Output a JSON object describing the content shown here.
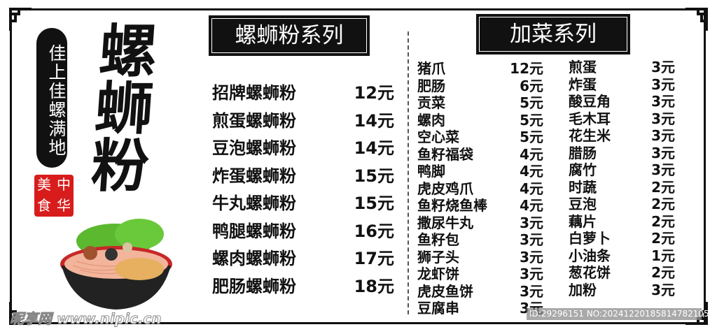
{
  "branding": {
    "slogan": "佳上佳螺满地",
    "big_title": "螺蛳粉",
    "seal_chars": [
      "美",
      "中",
      "食",
      "华"
    ],
    "seal_color": "#d81c1c"
  },
  "main_menu": {
    "title": "螺蛳粉系列",
    "items": [
      {
        "name": "招牌螺蛳粉",
        "price": "12元"
      },
      {
        "name": "煎蛋螺蛳粉",
        "price": "14元"
      },
      {
        "name": "豆泡螺蛳粉",
        "price": "14元"
      },
      {
        "name": "炸蛋螺蛳粉",
        "price": "15元"
      },
      {
        "name": "牛丸螺蛳粉",
        "price": "15元"
      },
      {
        "name": "鸭腿螺蛳粉",
        "price": "16元"
      },
      {
        "name": "螺肉螺蛳粉",
        "price": "17元"
      },
      {
        "name": "肥肠螺蛳粉",
        "price": "18元"
      }
    ]
  },
  "addons": {
    "title": "加菜系列",
    "column1": [
      {
        "name": "猪爪",
        "price": "12元"
      },
      {
        "name": "肥肠",
        "price": "6元"
      },
      {
        "name": "贡菜",
        "price": "5元"
      },
      {
        "name": "螺肉",
        "price": "5元"
      },
      {
        "name": "空心菜",
        "price": "5元"
      },
      {
        "name": "鱼籽福袋",
        "price": "4元"
      },
      {
        "name": "鸭脚",
        "price": "4元"
      },
      {
        "name": "虎皮鸡爪",
        "price": "4元"
      },
      {
        "name": "鱼籽烧鱼棒",
        "price": "4元"
      },
      {
        "name": "撒尿牛丸",
        "price": "3元"
      },
      {
        "name": "鱼籽包",
        "price": "3元"
      },
      {
        "name": "狮子头",
        "price": "3元"
      },
      {
        "name": "龙虾饼",
        "price": "3元"
      },
      {
        "name": "虎皮鱼饼",
        "price": "3元"
      },
      {
        "name": "豆腐串",
        "price": "3元"
      }
    ],
    "column2": [
      {
        "name": "煎蛋",
        "price": "3元"
      },
      {
        "name": "炸蛋",
        "price": "3元"
      },
      {
        "name": "酸豆角",
        "price": "3元"
      },
      {
        "name": "毛木耳",
        "price": "3元"
      },
      {
        "name": "花生米",
        "price": "3元"
      },
      {
        "name": "腊肠",
        "price": "3元"
      },
      {
        "name": "腐竹",
        "price": "3元"
      },
      {
        "name": "时蔬",
        "price": "2元"
      },
      {
        "name": "豆泡",
        "price": "2元"
      },
      {
        "name": "藕片",
        "price": "2元"
      },
      {
        "name": "白萝卜",
        "price": "2元"
      },
      {
        "name": "小油条",
        "price": "1元"
      },
      {
        "name": "葱花饼",
        "price": "2元"
      },
      {
        "name": "加粉",
        "price": "3元"
      }
    ]
  },
  "watermark": {
    "logo": "昵享网 www.nipic.cn",
    "id_text": "ID:29296151 NO:20241220185814782105"
  }
}
